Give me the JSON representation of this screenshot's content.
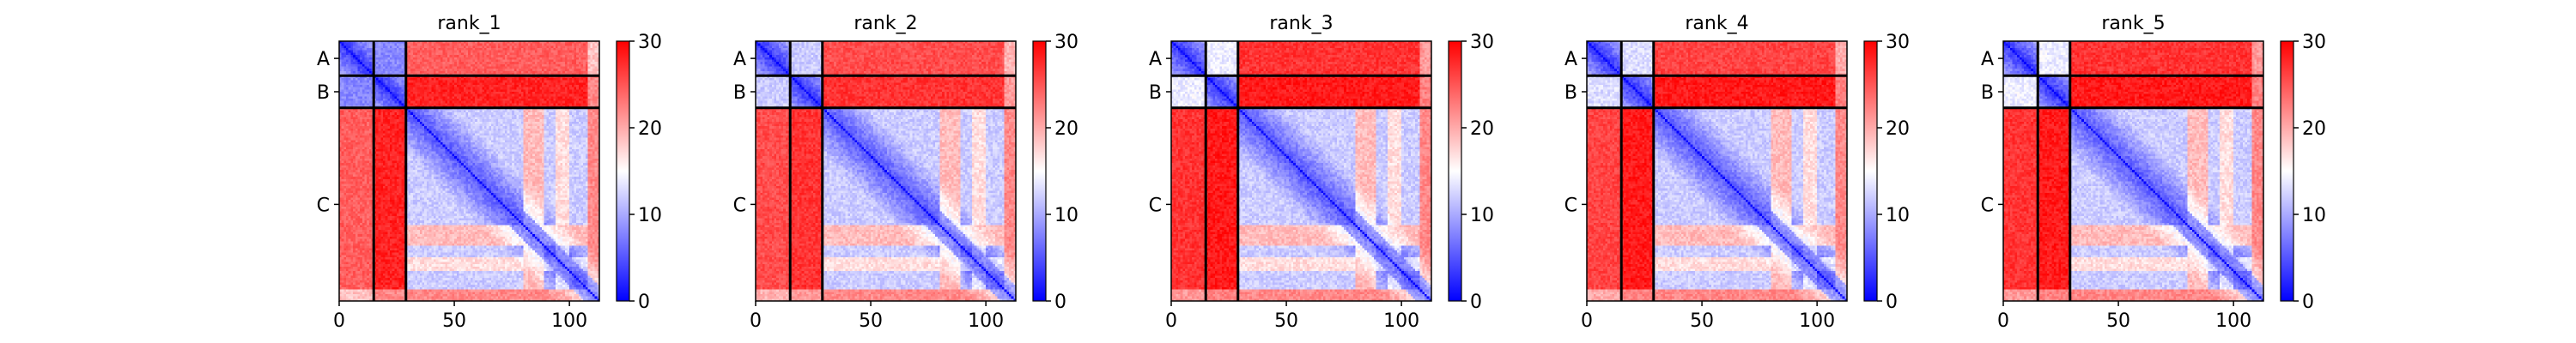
{
  "chart_data": {
    "type": "heatmap",
    "panels": [
      {
        "title": "rank_1",
        "ab_level": 8,
        "ac_level": 24.5,
        "bc_level": 28
      },
      {
        "title": "rank_2",
        "ab_level": 12,
        "ac_level": 25.5,
        "bc_level": 27
      },
      {
        "title": "rank_3",
        "ab_level": 14,
        "ac_level": 27,
        "bc_level": 28.5
      },
      {
        "title": "rank_4",
        "ab_level": 13,
        "ac_level": 26,
        "bc_level": 28.5
      },
      {
        "title": "rank_5",
        "ab_level": 14,
        "ac_level": 27,
        "bc_level": 28.5
      }
    ],
    "chains": [
      {
        "label": "A",
        "start": 0,
        "end": 15
      },
      {
        "label": "B",
        "start": 15,
        "end": 29
      },
      {
        "label": "C",
        "start": 29,
        "end": 113
      }
    ],
    "x_range": [
      0,
      113
    ],
    "x_ticks": [
      "0",
      "50",
      "100"
    ],
    "color_range": [
      0,
      30
    ],
    "colorbar_ticks": [
      "0",
      "10",
      "20",
      "30"
    ],
    "colormap": "bwr",
    "colors": {
      "low": "#0000ff",
      "mid": "#ffffff",
      "high": "#ff0000"
    }
  }
}
